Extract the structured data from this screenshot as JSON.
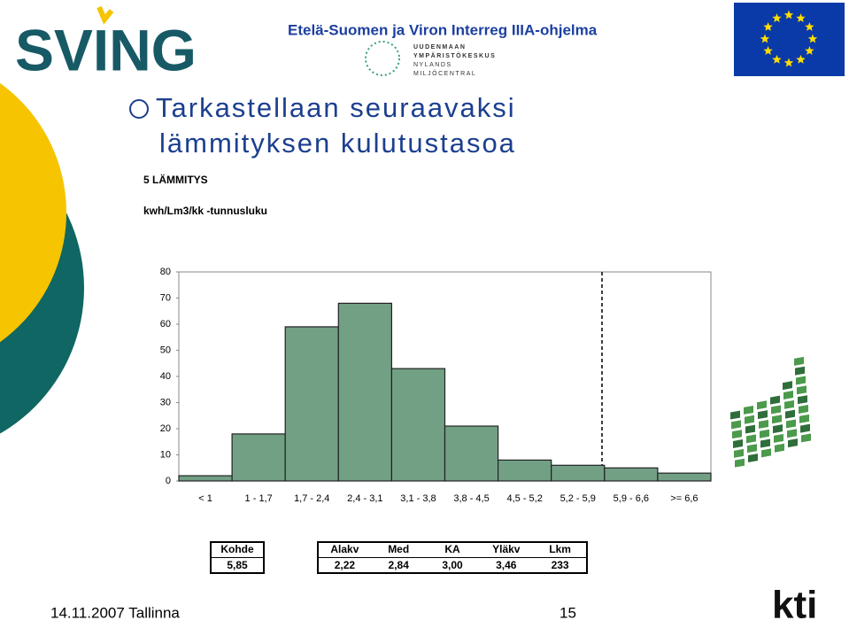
{
  "header": {
    "program": "Etelä-Suomen ja Viron Interreg IIIA-ohjelma",
    "logo": "SVING",
    "partner": [
      "UUDENMAAN",
      "YMPÄRISTÖKESKUS",
      "NYLANDS",
      "MILJÖCENTRAL"
    ],
    "partner2": "kti"
  },
  "slide_title": [
    "Tarkastellaan seuraavaksi",
    "lämmityksen kulutustasoa"
  ],
  "chart_data": {
    "type": "bar",
    "title": "5 LÄMMITYS",
    "subtitle": "kwh/Lm3/kk -tunnusluku",
    "categories": [
      "< 1",
      "1 - 1,7",
      "1,7 - 2,4",
      "2,4 - 3,1",
      "3,1 - 3,8",
      "3,8 - 4,5",
      "4,5 - 5,2",
      "5,2 - 5,9",
      "5,9 - 6,6",
      ">= 6,6"
    ],
    "values": [
      2,
      18,
      59,
      68,
      43,
      21,
      8,
      6,
      5,
      3
    ],
    "color": "#72a085",
    "ylim": [
      0,
      80
    ],
    "yticks": [
      0,
      10,
      20,
      30,
      40,
      50,
      60,
      70,
      80
    ],
    "grid": false
  },
  "tables": [
    {
      "headers": [
        "Kohde"
      ],
      "rows": [
        [
          "5,85"
        ]
      ]
    },
    {
      "headers": [
        "Alakv",
        "Med",
        "KA",
        "Yläkv",
        "Lkm"
      ],
      "rows": [
        [
          "2,22",
          "2,84",
          "3,00",
          "3,46",
          "233"
        ]
      ]
    }
  ],
  "footer": {
    "date": "14.11.2007 Tallinna",
    "page": "15"
  }
}
